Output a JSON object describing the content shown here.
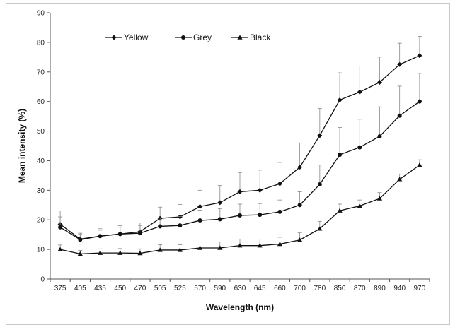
{
  "chart_data": {
    "type": "line",
    "xlabel": "Wavelength (nm)",
    "ylabel": "Mean intensity (%)",
    "ylim": [
      0,
      90
    ],
    "yticks": [
      0,
      10,
      20,
      30,
      40,
      50,
      60,
      70,
      80,
      90
    ],
    "categories": [
      "375",
      "405",
      "435",
      "450",
      "470",
      "505",
      "525",
      "570",
      "590",
      "630",
      "645",
      "660",
      "700",
      "780",
      "850",
      "870",
      "890",
      "940",
      "970"
    ],
    "legend_position": "top-left",
    "grid": false,
    "series": [
      {
        "name": "Yellow",
        "marker": "diamond",
        "values": [
          18.5,
          13.5,
          14.5,
          15.2,
          16.0,
          20.5,
          21.0,
          24.5,
          25.8,
          29.5,
          30.0,
          32.2,
          37.8,
          48.5,
          60.5,
          63.2,
          66.5,
          72.5,
          75.5
        ],
        "error": [
          4.5,
          2.0,
          2.5,
          2.8,
          3.0,
          3.8,
          4.2,
          5.5,
          5.8,
          6.5,
          6.8,
          7.2,
          8.2,
          9.2,
          9.2,
          8.8,
          8.5,
          7.2,
          6.5
        ]
      },
      {
        "name": "Grey",
        "marker": "circle",
        "values": [
          17.5,
          13.3,
          14.5,
          15.2,
          15.5,
          17.8,
          18.1,
          19.8,
          20.2,
          21.5,
          21.7,
          22.7,
          25.0,
          32.0,
          42.0,
          44.5,
          48.2,
          55.2,
          60.0
        ],
        "error": [
          3.5,
          1.8,
          2.0,
          2.3,
          2.6,
          2.9,
          3.0,
          3.5,
          3.6,
          3.8,
          3.8,
          4.0,
          4.5,
          6.5,
          9.2,
          9.5,
          10.0,
          10.0,
          9.5
        ]
      },
      {
        "name": "Black",
        "marker": "triangle",
        "values": [
          10.0,
          8.5,
          8.8,
          8.8,
          8.7,
          9.8,
          9.8,
          10.5,
          10.5,
          11.3,
          11.3,
          11.8,
          13.2,
          17.0,
          23.1,
          24.7,
          27.2,
          33.7,
          38.5
        ],
        "error": [
          1.5,
          1.2,
          1.4,
          1.5,
          1.5,
          1.8,
          1.8,
          2.0,
          2.0,
          2.2,
          2.2,
          2.3,
          2.4,
          2.5,
          2.2,
          2.0,
          2.0,
          1.8,
          1.8
        ]
      }
    ]
  }
}
